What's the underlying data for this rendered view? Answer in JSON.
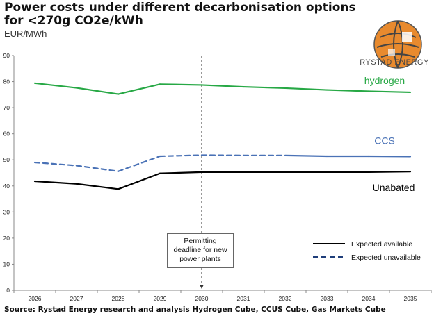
{
  "title": "Power costs under different decarbonisation options for <270g CO2e/kWh",
  "unit": "EUR/MWh",
  "logo_text": "RYSTAD ENERGY",
  "source": "Source: Rystad Energy research and analysis Hydrogen Cube, CCUS Cube, Gas Markets Cube",
  "annotation": {
    "line1": "Permitting",
    "line2": "deadline for new",
    "line3": "power plants",
    "at_x": "2030"
  },
  "legend": {
    "solid": "Expected available",
    "dashed": "Expected unavailable"
  },
  "chart_data": {
    "type": "line",
    "categories": [
      "2026",
      "2027",
      "2028",
      "2029",
      "2030",
      "2031",
      "2032",
      "2033",
      "2034",
      "2035"
    ],
    "ylim": [
      0,
      90
    ],
    "yticks": [
      0,
      10,
      20,
      30,
      40,
      50,
      60,
      70,
      80,
      90
    ],
    "grid": false,
    "legend_position": "bottom-right",
    "series": [
      {
        "name": "hydrogen",
        "color": "#27a845",
        "values": [
          79.4,
          77.6,
          75.2,
          79.0,
          78.7,
          78.0,
          77.5,
          76.8,
          76.3,
          75.9
        ],
        "style": [
          "solid",
          "solid",
          "solid",
          "solid",
          "solid",
          "solid",
          "solid",
          "solid",
          "solid",
          "solid"
        ]
      },
      {
        "name": "CCS",
        "color": "#4a72b6",
        "values": [
          49.0,
          47.8,
          45.6,
          51.4,
          51.8,
          51.7,
          51.7,
          51.4,
          51.4,
          51.3
        ],
        "style": [
          "dashed",
          "dashed",
          "dashed",
          "dashed",
          "dashed",
          "dashed",
          "dashed",
          "solid",
          "solid",
          "solid"
        ]
      },
      {
        "name": "Unabated",
        "color": "#000000",
        "values": [
          41.8,
          40.8,
          38.8,
          44.8,
          45.3,
          45.3,
          45.3,
          45.3,
          45.3,
          45.5
        ],
        "style": [
          "solid",
          "solid",
          "solid",
          "solid",
          "solid",
          "solid",
          "solid",
          "solid",
          "solid",
          "solid"
        ]
      }
    ]
  }
}
